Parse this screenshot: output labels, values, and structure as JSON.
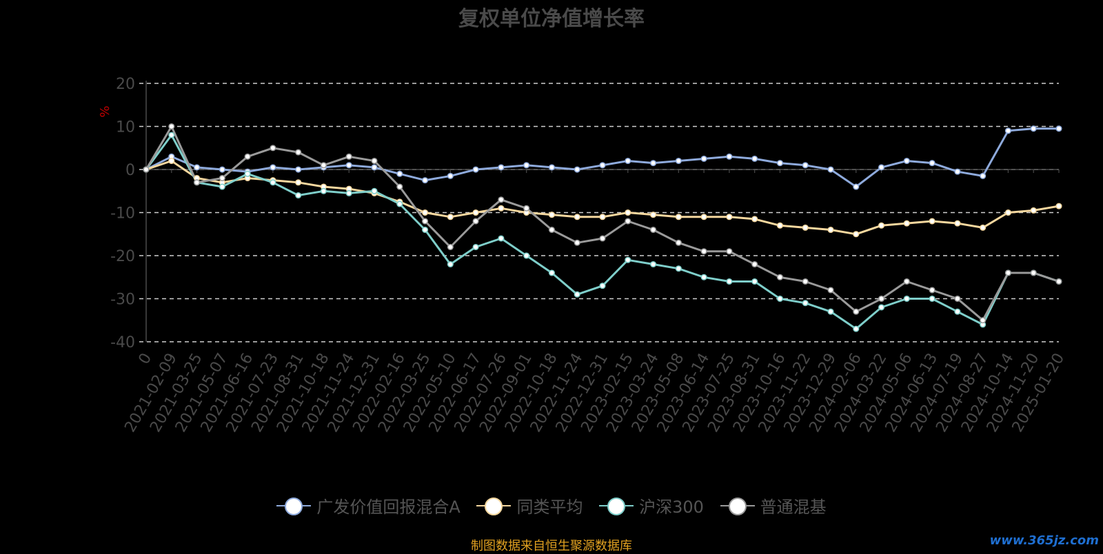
{
  "chart_data": {
    "type": "line",
    "title": "复权单位净值增长率",
    "ylabel": "%",
    "ylim": [
      -40,
      20
    ],
    "yticks": [
      20,
      10,
      0,
      -10,
      -20,
      -30,
      -40
    ],
    "grid": true,
    "legend_position": "bottom-center",
    "x_tick_labels": [
      "0",
      "2021-02-09",
      "2021-03-25",
      "2021-05-07",
      "2021-06-16",
      "2021-07-23",
      "2021-08-31",
      "2021-10-18",
      "2021-11-24",
      "2021-12-31",
      "2022-02-16",
      "2022-03-25",
      "2022-05-10",
      "2022-06-17",
      "2022-07-26",
      "2022-09-01",
      "2022-10-18",
      "2022-11-24",
      "2022-12-31",
      "2023-02-15",
      "2023-03-24",
      "2023-05-08",
      "2023-06-14",
      "2023-07-25",
      "2023-08-31",
      "2023-10-16",
      "2023-11-22",
      "2023-12-29",
      "2024-02-06",
      "2024-03-22",
      "2024-05-06",
      "2024-06-13",
      "2024-07-19",
      "2024-08-27",
      "2024-10-14",
      "2024-11-20",
      "2025-01-20"
    ],
    "series": [
      {
        "name": "广发价值回报混合A",
        "color": "#8eaadc",
        "values": [
          0,
          3,
          0.5,
          0,
          -0.5,
          0.5,
          0,
          0.5,
          1,
          0.5,
          -1,
          -2.5,
          -1.5,
          0,
          0.5,
          1,
          0.5,
          0,
          1,
          2,
          1.5,
          2,
          2.5,
          3,
          2.5,
          1.5,
          1,
          0,
          -4,
          0.5,
          2,
          1.5,
          -0.5,
          -1.5,
          9,
          9.5,
          9.5
        ]
      },
      {
        "name": "同类平均",
        "color": "#f5d79e",
        "values": [
          0,
          2,
          -2,
          -3,
          -2,
          -2.5,
          -3,
          -4,
          -4.5,
          -5.5,
          -7.5,
          -10,
          -11,
          -10,
          -9,
          -10,
          -10.5,
          -11,
          -11,
          -10,
          -10.5,
          -11,
          -11,
          -11,
          -11.5,
          -13,
          -13.5,
          -14,
          -15,
          -13,
          -12.5,
          -12,
          -12.5,
          -13.5,
          -10,
          -9.5,
          -8.5
        ]
      },
      {
        "name": "沪深300",
        "color": "#7ececa",
        "values": [
          0,
          8,
          -3,
          -4,
          -1,
          -3,
          -6,
          -5,
          -5.5,
          -5,
          -8,
          -14,
          -22,
          -18,
          -16,
          -20,
          -24,
          -29,
          -27,
          -21,
          -22,
          -23,
          -25,
          -26,
          -26,
          -30,
          -31,
          -33,
          -37,
          -32,
          -30,
          -30,
          -33,
          -36,
          -24,
          -24,
          -26
        ]
      },
      {
        "name": "普通混基",
        "color": "#9a9a9a",
        "values": [
          0,
          10,
          -3,
          -2,
          3,
          5,
          4,
          1,
          3,
          2,
          -4,
          -12,
          -18,
          -12,
          -7,
          -9,
          -14,
          -17,
          -16,
          -12,
          -14,
          -17,
          -19,
          -19,
          -22,
          -25,
          -26,
          -28,
          -33,
          -30,
          -26,
          -28,
          -30,
          -35,
          -24,
          -24,
          -26
        ]
      }
    ],
    "source_note": "制图数据来自恒生聚源数据库",
    "watermark": "www.365jz.com"
  }
}
